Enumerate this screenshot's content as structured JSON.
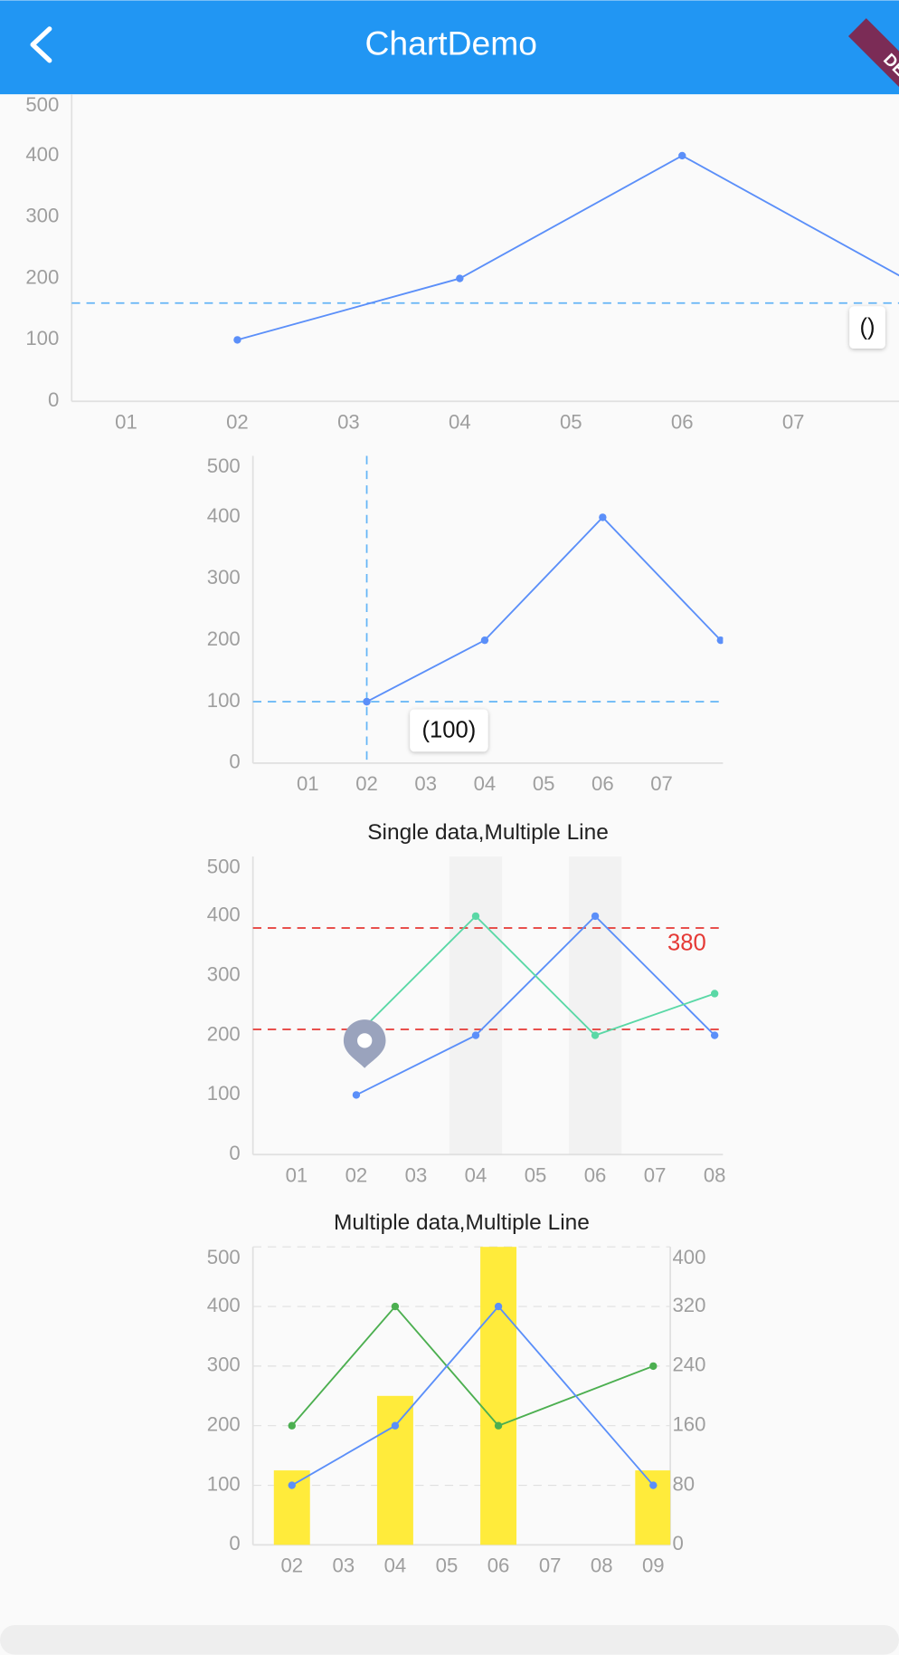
{
  "app_bar": {
    "title": "ChartDemo"
  },
  "debug_banner": "DEBUG",
  "chart_data": [
    {
      "type": "line",
      "x": [
        2,
        4,
        6,
        8
      ],
      "series": [
        {
          "color": "#5b8ff9",
          "values": [
            100,
            200,
            400,
            200
          ]
        }
      ],
      "xlim": [
        0.51,
        7.95
      ],
      "xticks": [
        {
          "value": 1,
          "label": "01"
        },
        {
          "value": 2,
          "label": "02"
        },
        {
          "value": 3,
          "label": "03"
        },
        {
          "value": 4,
          "label": "04"
        },
        {
          "value": 5,
          "label": "05"
        },
        {
          "value": 6,
          "label": "06"
        },
        {
          "value": 7,
          "label": "07"
        }
      ],
      "ylim": [
        0,
        500
      ],
      "yticks": [
        0,
        100,
        200,
        300,
        400,
        500
      ],
      "ref_lines": [
        {
          "y": 160,
          "color": "#64b5f6"
        }
      ],
      "tooltip": "()"
    },
    {
      "type": "line",
      "x": [
        2,
        4,
        6,
        8
      ],
      "series": [
        {
          "color": "#5b8ff9",
          "values": [
            100,
            200,
            400,
            200
          ]
        }
      ],
      "xlim": [
        0.07,
        8.04
      ],
      "xticks": [
        {
          "value": 1,
          "label": "01"
        },
        {
          "value": 2,
          "label": "02"
        },
        {
          "value": 3,
          "label": "03"
        },
        {
          "value": 4,
          "label": "04"
        },
        {
          "value": 5,
          "label": "05"
        },
        {
          "value": 6,
          "label": "06"
        },
        {
          "value": 7,
          "label": "07"
        }
      ],
      "ylim": [
        0,
        500
      ],
      "yticks": [
        0,
        100,
        200,
        300,
        400,
        500
      ],
      "crosshair": {
        "x": 2,
        "y": 100,
        "color": "#64b5f6"
      },
      "tooltip": "(100)"
    },
    {
      "type": "line",
      "title": "Single data,Multiple Line",
      "x": [
        2,
        4,
        6,
        8
      ],
      "series": [
        {
          "color": "#5b8ff9",
          "values": [
            100,
            200,
            400,
            200
          ]
        },
        {
          "color": "#5ad8a6",
          "values": [
            200,
            400,
            200,
            270
          ]
        }
      ],
      "xlim": [
        0.27,
        8.14
      ],
      "xticks": [
        {
          "value": 1,
          "label": "01"
        },
        {
          "value": 2,
          "label": "02"
        },
        {
          "value": 3,
          "label": "03"
        },
        {
          "value": 4,
          "label": "04"
        },
        {
          "value": 5,
          "label": "05"
        },
        {
          "value": 6,
          "label": "06"
        },
        {
          "value": 7,
          "label": "07"
        },
        {
          "value": 8,
          "label": "08"
        }
      ],
      "ylim": [
        0,
        500
      ],
      "yticks": [
        0,
        100,
        200,
        300,
        400,
        500
      ],
      "highlight_x": [
        4,
        6
      ],
      "ref_lines": [
        {
          "y": 380,
          "label": "380",
          "color": "#e53935"
        },
        {
          "y": 210,
          "color": "#e53935"
        }
      ]
    },
    {
      "type": "combo",
      "title": "Multiple data,Multiple Line",
      "x": [
        2,
        4,
        6,
        9
      ],
      "series": [
        {
          "type": "bar",
          "axis": "y2",
          "color": "#ffeb3b",
          "values": [
            100,
            200,
            400,
            100
          ]
        },
        {
          "type": "line",
          "color": "#4caf50",
          "values": [
            200,
            400,
            200,
            300
          ]
        },
        {
          "type": "line",
          "color": "#5b8ff9",
          "values": [
            100,
            200,
            400,
            100
          ]
        }
      ],
      "xlim": [
        1.245,
        9.33
      ],
      "xticks": [
        {
          "value": 2,
          "label": "02"
        },
        {
          "value": 3,
          "label": "03"
        },
        {
          "value": 4,
          "label": "04"
        },
        {
          "value": 5,
          "label": "05"
        },
        {
          "value": 6,
          "label": "06"
        },
        {
          "value": 7,
          "label": "07"
        },
        {
          "value": 8,
          "label": "08"
        },
        {
          "value": 9,
          "label": "09"
        }
      ],
      "ylim": [
        0,
        500
      ],
      "yticks": [
        0,
        100,
        200,
        300,
        400,
        500
      ],
      "y2lim": [
        0,
        400
      ],
      "y2ticks": [
        0,
        80,
        160,
        240,
        320,
        400
      ],
      "grid": true
    }
  ]
}
